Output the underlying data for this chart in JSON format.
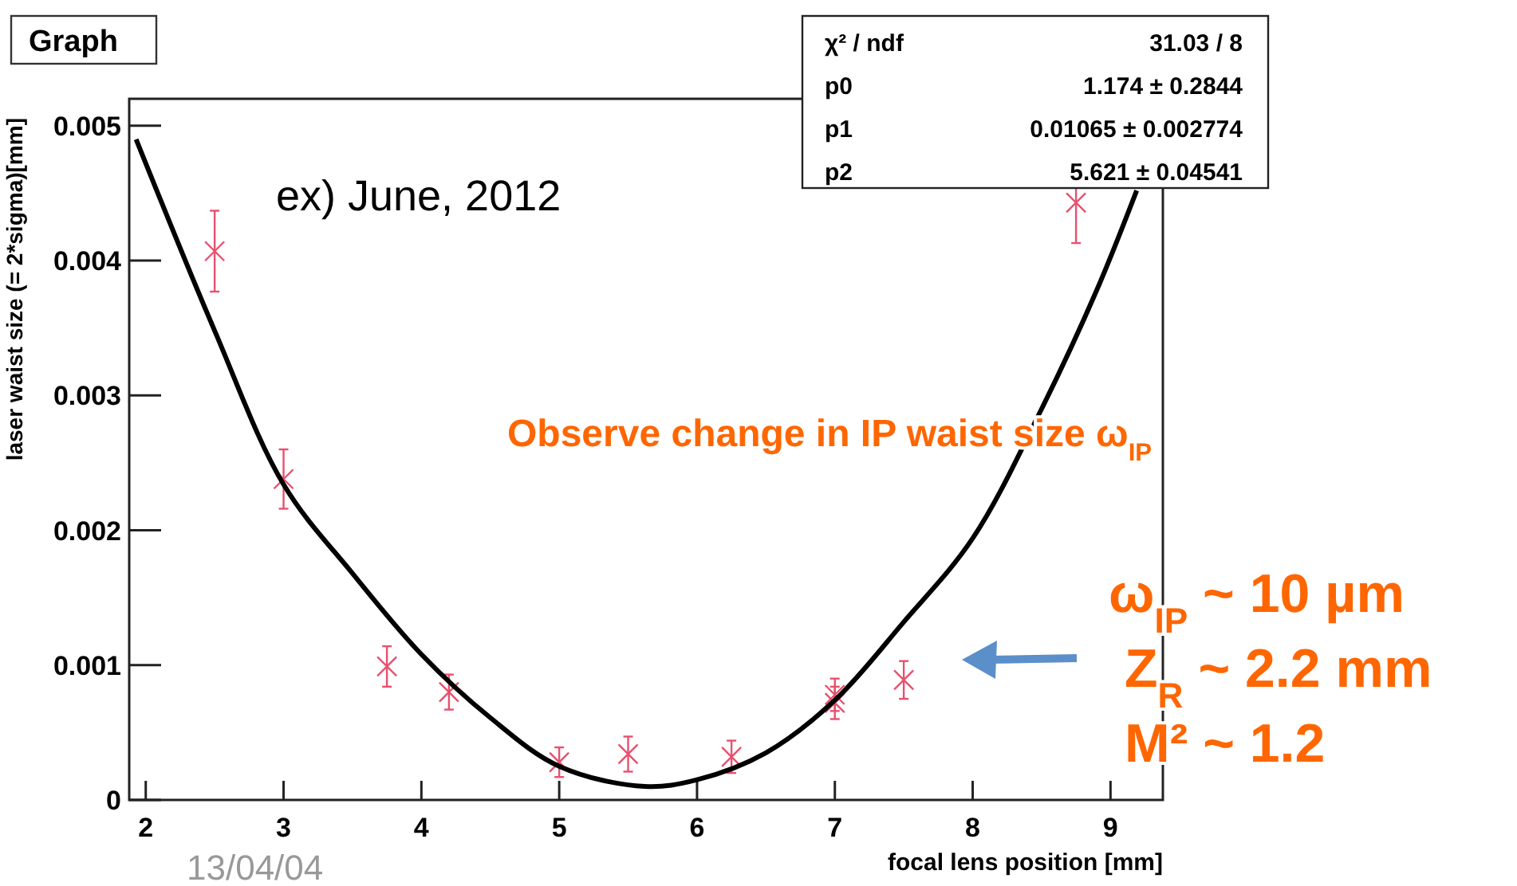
{
  "chart_data": {
    "type": "scatter",
    "title": "Graph",
    "xlabel": "focal lens position [mm]",
    "ylabel": "laser waist size (= 2*sigma)[mm]",
    "xlim": [
      1.88,
      9.38
    ],
    "ylim": [
      0,
      0.0052
    ],
    "xticks": [
      2,
      3,
      4,
      5,
      6,
      7,
      8,
      9
    ],
    "yticks": [
      0,
      0.001,
      0.002,
      0.003,
      0.004,
      0.005
    ],
    "grid": false,
    "series": [
      {
        "marker": "cross",
        "color": "#e8506e",
        "x": [
          2.5,
          3,
          3.75,
          4.2,
          5,
          5.5,
          6.25,
          7,
          7,
          7.5,
          8.75
        ],
        "values": [
          0.00407,
          0.00238,
          0.00099,
          0.0008,
          0.00028,
          0.00034,
          0.00032,
          0.00078,
          0.00072,
          0.00089,
          0.00443
        ],
        "errors": [
          0.0003,
          0.00022,
          0.00015,
          0.00013,
          0.00011,
          0.00013,
          0.00012,
          0.00012,
          0.00012,
          0.00014,
          0.0003
        ]
      },
      {
        "type": "line",
        "color": "#000000",
        "x": [
          1.93,
          2.5,
          3,
          3.5,
          4,
          4.5,
          5,
          5.62,
          6,
          6.5,
          7,
          7.5,
          8,
          8.5,
          8.9,
          9.19
        ],
        "values": [
          0.0049,
          0.00348,
          0.00234,
          0.00168,
          0.00108,
          0.00061,
          0.00025,
          0.0001,
          0.00015,
          0.00035,
          0.00074,
          0.00132,
          0.00194,
          0.0029,
          0.00378,
          0.00452
        ]
      }
    ],
    "annotations": [
      "χ² / ndf",
      "31.03 / 8",
      "p0",
      "1.174 ± 0.2844",
      "p1",
      "0.01065 ± 0.002774",
      "p2",
      "5.621 ± 0.04541",
      "ex)  June, 2012",
      "Observe change in IP waist size ω$_{IP}$",
      "ω$_{IP}$ ~ 10 µm",
      "Z$_{R}$ ~ 2.2 mm",
      "M² ~ 1.2",
      "13/04/04"
    ]
  }
}
